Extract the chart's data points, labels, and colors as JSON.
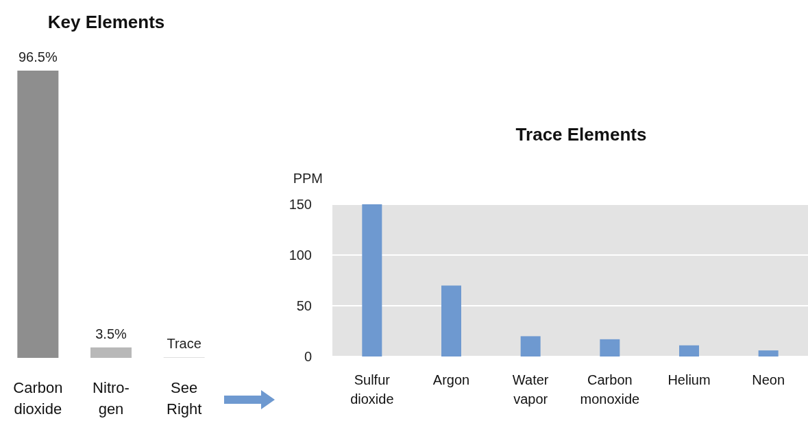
{
  "chart_data": [
    {
      "type": "bar",
      "title": "Key Elements",
      "categories": [
        "Carbon\ndioxide",
        "Nitro-\ngen",
        "See\nRight"
      ],
      "values": [
        96.5,
        3.5,
        0.2
      ],
      "colors": [
        "#8e8e8e",
        "#b8b8b8",
        "#d4d4d4"
      ],
      "value_labels": [
        "96.5%",
        "3.5%",
        "Trace"
      ]
    },
    {
      "type": "bar",
      "title": "Trace Elements",
      "ylabel": "PPM",
      "categories": [
        "Sulfur\ndioxide",
        "Argon",
        "Water\nvapor",
        "Carbon\nmonoxide",
        "Helium",
        "Neon"
      ],
      "values": [
        150,
        70,
        20,
        17,
        11,
        6
      ],
      "color": "#6e99d0",
      "ylim": [
        0,
        150
      ],
      "yticks": [
        0,
        50,
        100,
        150
      ],
      "grid": "y"
    }
  ]
}
